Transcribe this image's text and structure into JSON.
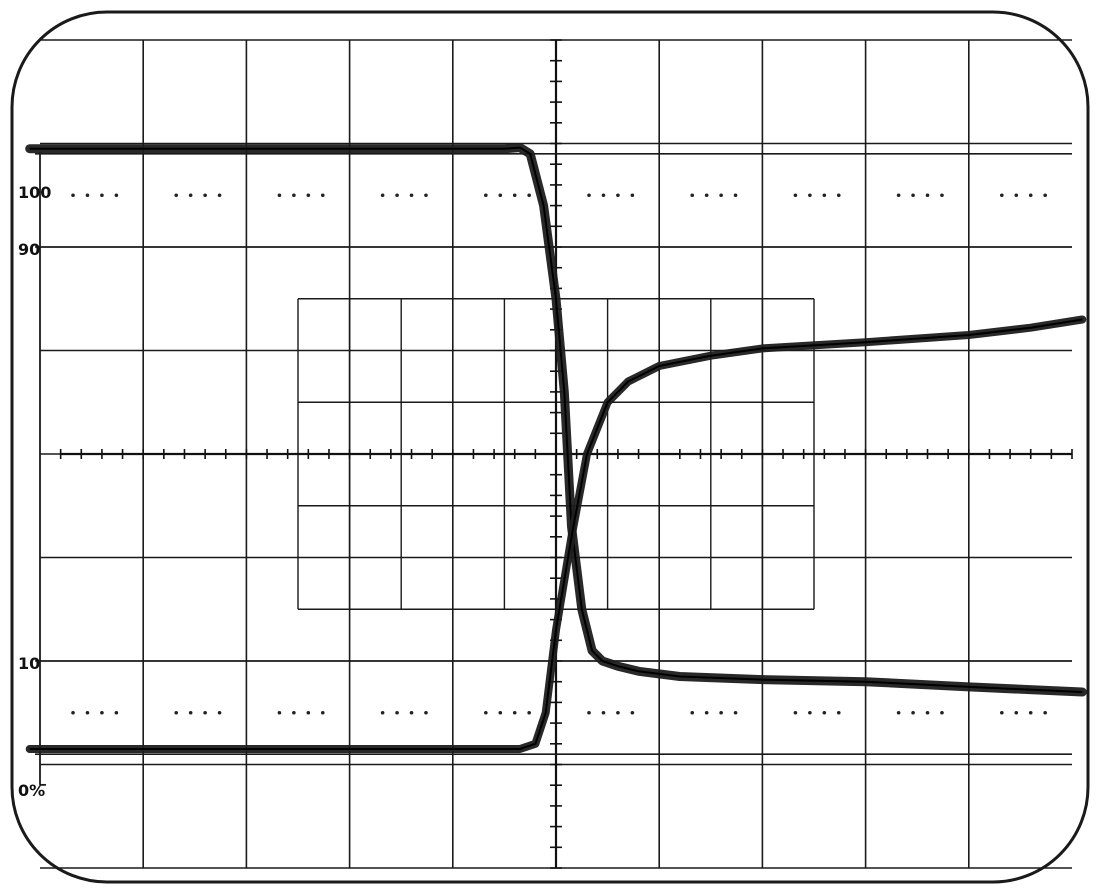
{
  "chart_data": {
    "type": "line",
    "title": "",
    "xlabel": "",
    "ylabel": "",
    "x_divisions": 10,
    "y_divisions": 8,
    "xlim": [
      -5,
      5
    ],
    "ylim": [
      -4,
      4
    ],
    "level_labels": [
      "100",
      "90",
      "10",
      "0%"
    ],
    "reference_levels": [
      {
        "label": "100",
        "y": 2.9
      },
      {
        "label": "90",
        "y": 2.0
      },
      {
        "label": "10",
        "y": -2.0
      },
      {
        "label": "0%",
        "y": -2.9
      }
    ],
    "inner_graticule": {
      "x_range": [
        -2.5,
        2.5
      ],
      "y_range": [
        -1.5,
        1.5
      ],
      "step": 0.5
    },
    "dotted_rows_y": [
      2.5,
      -2.5
    ],
    "series": [
      {
        "x": [
          -5.1,
          -3,
          -1,
          -0.5,
          -0.35,
          -0.25,
          -0.12,
          0,
          0.08,
          0.15,
          0.25,
          0.35,
          0.45,
          0.6,
          0.8,
          1.2,
          2,
          3,
          4,
          5.1
        ],
        "y": [
          2.95,
          2.95,
          2.95,
          2.95,
          2.96,
          2.9,
          2.4,
          1.5,
          0.6,
          -0.7,
          -1.5,
          -1.9,
          -2.0,
          -2.05,
          -2.1,
          -2.15,
          -2.18,
          -2.2,
          -2.25,
          -2.3
        ]
      },
      {
        "x": [
          -5.1,
          -3,
          -0.35,
          -0.2,
          -0.1,
          0,
          0.15,
          0.3,
          0.5,
          0.7,
          1.0,
          1.5,
          2,
          3,
          4,
          4.6,
          5.1
        ],
        "y": [
          -2.85,
          -2.85,
          -2.85,
          -2.8,
          -2.5,
          -1.7,
          -0.8,
          0.0,
          0.5,
          0.7,
          0.85,
          0.95,
          1.02,
          1.08,
          1.15,
          1.22,
          1.3
        ]
      }
    ]
  }
}
